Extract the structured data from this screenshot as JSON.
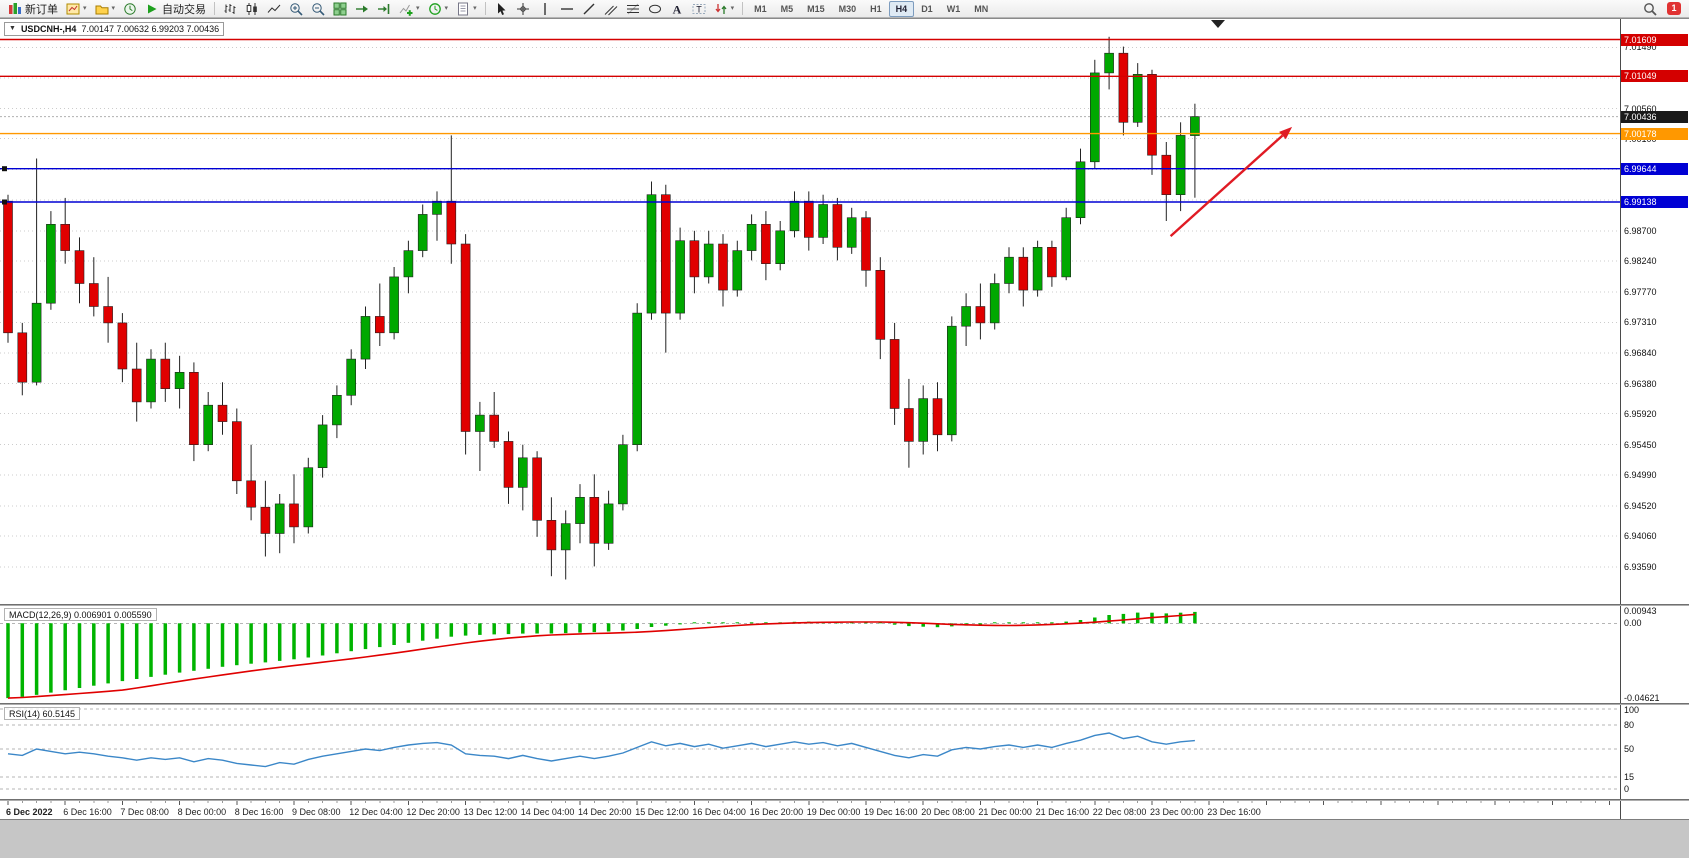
{
  "toolbar": {
    "groups": [
      {
        "name": "standard",
        "items": [
          {
            "name": "new-order-button",
            "icon": "new-order-icon",
            "label": "新订单"
          },
          {
            "name": "new-chart-button",
            "icon": "new-chart-icon",
            "caret": true
          },
          {
            "name": "profiles-button",
            "icon": "profiles-icon",
            "caret": true
          },
          {
            "name": "market-watch-button",
            "icon": "market-watch-icon"
          },
          {
            "name": "auto-trading-button",
            "icon": "play-icon",
            "label": "自动交易"
          }
        ]
      },
      {
        "name": "charts",
        "items": [
          {
            "name": "bar-chart-button",
            "icon": "bar-chart-icon"
          },
          {
            "name": "candlestick-button",
            "icon": "candlestick-icon"
          },
          {
            "name": "line-chart-button",
            "icon": "line-chart-icon"
          },
          {
            "name": "zoom-in-button",
            "icon": "zoom-in-icon"
          },
          {
            "name": "zoom-out-button",
            "icon": "zoom-out-icon"
          },
          {
            "name": "tile-windows-button",
            "icon": "tile-windows-icon"
          },
          {
            "name": "auto-scroll-button",
            "icon": "auto-scroll-icon"
          },
          {
            "name": "chart-shift-button",
            "icon": "chart-shift-icon"
          },
          {
            "name": "indicators-button",
            "icon": "indicators-icon",
            "caret": true
          },
          {
            "name": "periods-button",
            "icon": "periods-icon",
            "caret": true
          },
          {
            "name": "templates-button",
            "icon": "templates-icon",
            "caret": true
          }
        ]
      },
      {
        "name": "line-studies",
        "items": [
          {
            "name": "cursor-button",
            "icon": "cursor-icon"
          },
          {
            "name": "crosshair-button",
            "icon": "crosshair-icon"
          },
          {
            "name": "vertical-line-button",
            "icon": "vertical-line-icon"
          },
          {
            "name": "horizontal-line-button",
            "icon": "horizontal-line-icon"
          },
          {
            "name": "trendline-button",
            "icon": "trendline-icon"
          },
          {
            "name": "channel-button",
            "icon": "channel-icon"
          },
          {
            "name": "fibonacci-button",
            "icon": "fibonacci-icon"
          },
          {
            "name": "shapes-button",
            "icon": "ellipse-icon"
          },
          {
            "name": "text-button",
            "icon": "text-icon"
          },
          {
            "name": "text-label-button",
            "icon": "text-label-icon"
          },
          {
            "name": "arrows-button",
            "icon": "arrows-icon",
            "caret": true
          }
        ]
      }
    ],
    "timeframes": [
      "M1",
      "M5",
      "M15",
      "M30",
      "H1",
      "H4",
      "D1",
      "W1",
      "MN"
    ],
    "active_timeframe": "H4",
    "notification_count": "1"
  },
  "chart_header": {
    "collapse_icon": "▼",
    "symbol": "USDCNH-,H4",
    "ohlc": "7.00147 7.00632 6.99203 7.00436"
  },
  "chart_data": {
    "type": "candlestick",
    "symbol": "USDCNH-",
    "timeframe": "H4",
    "current_bar": {
      "open": 7.00147,
      "high": 7.00632,
      "low": 6.99203,
      "close": 7.00436
    },
    "y_axis": {
      "min": 6.9303,
      "max": 7.0192,
      "visible_labels": [
        "7.01490",
        "7.00560",
        "7.00100",
        "6.98700",
        "6.98240",
        "6.97770",
        "6.97310",
        "6.96840",
        "6.96380",
        "6.95920",
        "6.95450",
        "6.94990",
        "6.94520",
        "6.94060",
        "6.93590"
      ],
      "grid_levels": [
        7.0149,
        7.01025,
        7.0056,
        7.001,
        6.99635,
        6.9917,
        6.987,
        6.9824,
        6.9777,
        6.9731,
        6.9684,
        6.9638,
        6.9592,
        6.9545,
        6.9499,
        6.9452,
        6.9406,
        6.9359
      ]
    },
    "x_labels": [
      "6 Dec 2022",
      "6 Dec 16:00",
      "7 Dec 08:00",
      "8 Dec 00:00",
      "8 Dec 16:00",
      "9 Dec 08:00",
      "12 Dec 04:00",
      "12 Dec 20:00",
      "13 Dec 12:00",
      "14 Dec 04:00",
      "14 Dec 20:00",
      "15 Dec 12:00",
      "16 Dec 04:00",
      "16 Dec 20:00",
      "19 Dec 00:00",
      "19 Dec 16:00",
      "20 Dec 08:00",
      "21 Dec 00:00",
      "21 Dec 16:00",
      "22 Dec 08:00",
      "23 Dec 00:00",
      "23 Dec 16:00"
    ],
    "bars_per_label": 4,
    "candles": [
      [
        6.9915,
        6.9925,
        6.97,
        6.9715
      ],
      [
        6.9715,
        6.973,
        6.962,
        6.964
      ],
      [
        6.964,
        6.998,
        6.9635,
        6.976
      ],
      [
        6.976,
        6.99,
        6.975,
        6.988
      ],
      [
        6.988,
        6.992,
        6.982,
        6.984
      ],
      [
        6.984,
        6.986,
        6.976,
        6.979
      ],
      [
        6.979,
        6.983,
        6.974,
        6.9755
      ],
      [
        6.9755,
        6.98,
        6.97,
        6.973
      ],
      [
        6.973,
        6.9745,
        6.964,
        6.966
      ],
      [
        6.966,
        6.97,
        6.958,
        6.961
      ],
      [
        6.961,
        6.969,
        6.96,
        6.9675
      ],
      [
        6.9675,
        6.97,
        6.961,
        6.963
      ],
      [
        6.963,
        6.968,
        6.96,
        6.9655
      ],
      [
        6.9655,
        6.967,
        6.952,
        6.9545
      ],
      [
        6.9545,
        6.9625,
        6.9535,
        6.9605
      ],
      [
        6.9605,
        6.964,
        6.956,
        6.958
      ],
      [
        6.958,
        6.96,
        6.947,
        6.949
      ],
      [
        6.949,
        6.9545,
        6.943,
        6.945
      ],
      [
        6.945,
        6.949,
        6.9375,
        6.941
      ],
      [
        6.941,
        6.947,
        6.938,
        6.9455
      ],
      [
        6.9455,
        6.95,
        6.9395,
        6.942
      ],
      [
        6.942,
        6.9525,
        6.941,
        6.951
      ],
      [
        6.951,
        6.959,
        6.9495,
        6.9575
      ],
      [
        6.9575,
        6.9635,
        6.9555,
        6.962
      ],
      [
        6.962,
        6.969,
        6.9605,
        6.9675
      ],
      [
        6.9675,
        6.9755,
        6.966,
        6.974
      ],
      [
        6.974,
        6.979,
        6.9695,
        6.9715
      ],
      [
        6.9715,
        6.9815,
        6.9705,
        6.98
      ],
      [
        6.98,
        6.9855,
        6.9775,
        6.984
      ],
      [
        6.984,
        6.991,
        6.983,
        6.9895
      ],
      [
        6.9895,
        6.993,
        6.9855,
        6.9915
      ],
      [
        6.9915,
        7.0015,
        6.982,
        6.985
      ],
      [
        6.985,
        6.9865,
        6.953,
        6.9565
      ],
      [
        6.9565,
        6.961,
        6.9505,
        6.959
      ],
      [
        6.959,
        6.9625,
        6.954,
        6.955
      ],
      [
        6.955,
        6.9565,
        6.9455,
        6.948
      ],
      [
        6.948,
        6.9545,
        6.9445,
        6.9525
      ],
      [
        6.9525,
        6.9535,
        6.9405,
        6.943
      ],
      [
        6.943,
        6.9465,
        6.9345,
        6.9385
      ],
      [
        6.9385,
        6.9445,
        6.934,
        6.9425
      ],
      [
        6.9425,
        6.9485,
        6.9395,
        6.9465
      ],
      [
        6.9465,
        6.95,
        6.936,
        6.9395
      ],
      [
        6.9395,
        6.9475,
        6.9385,
        6.9455
      ],
      [
        6.9455,
        6.956,
        6.9445,
        6.9545
      ],
      [
        6.9545,
        6.976,
        6.9535,
        6.9745
      ],
      [
        6.9745,
        6.9945,
        6.9735,
        6.9925
      ],
      [
        6.9925,
        6.994,
        6.9685,
        6.9745
      ],
      [
        6.9745,
        6.9875,
        6.9735,
        6.9855
      ],
      [
        6.9855,
        6.987,
        6.9775,
        6.98
      ],
      [
        6.98,
        6.987,
        6.979,
        6.985
      ],
      [
        6.985,
        6.9865,
        6.9755,
        6.978
      ],
      [
        6.978,
        6.9855,
        6.977,
        6.984
      ],
      [
        6.984,
        6.9895,
        6.9825,
        6.988
      ],
      [
        6.988,
        6.99,
        6.9795,
        6.982
      ],
      [
        6.982,
        6.9885,
        6.981,
        6.987
      ],
      [
        6.987,
        6.993,
        6.986,
        6.9915
      ],
      [
        6.9915,
        6.993,
        6.984,
        6.986
      ],
      [
        6.986,
        6.9925,
        6.985,
        6.991
      ],
      [
        6.991,
        6.992,
        6.9825,
        6.9845
      ],
      [
        6.9845,
        6.9905,
        6.9835,
        6.989
      ],
      [
        6.989,
        6.99,
        6.9785,
        6.981
      ],
      [
        6.981,
        6.983,
        6.9675,
        6.9705
      ],
      [
        6.9705,
        6.973,
        6.9575,
        6.96
      ],
      [
        6.96,
        6.9645,
        6.951,
        6.955
      ],
      [
        6.955,
        6.9635,
        6.953,
        6.9615
      ],
      [
        6.9615,
        6.964,
        6.9535,
        6.956
      ],
      [
        6.956,
        6.974,
        6.955,
        6.9725
      ],
      [
        6.9725,
        6.9775,
        6.9695,
        6.9755
      ],
      [
        6.9755,
        6.979,
        6.9705,
        6.973
      ],
      [
        6.973,
        6.9805,
        6.972,
        6.979
      ],
      [
        6.979,
        6.9845,
        6.9775,
        6.983
      ],
      [
        6.983,
        6.9845,
        6.9755,
        6.978
      ],
      [
        6.978,
        6.9855,
        6.977,
        6.9845
      ],
      [
        6.9845,
        6.9855,
        6.9785,
        6.98
      ],
      [
        6.98,
        6.9905,
        6.9795,
        6.989
      ],
      [
        6.989,
        6.9995,
        6.988,
        6.9975
      ],
      [
        6.9975,
        7.013,
        6.9965,
        7.011
      ],
      [
        7.011,
        7.0165,
        7.0085,
        7.014
      ],
      [
        7.014,
        7.015,
        7.0015,
        7.0035
      ],
      [
        7.0035,
        7.0125,
        7.0028,
        7.0108
      ],
      [
        7.0108,
        7.0115,
        6.9955,
        6.9985
      ],
      [
        6.9985,
        7.0005,
        6.9885,
        6.9925
      ],
      [
        6.9925,
        7.0035,
        6.99,
        7.0015
      ],
      [
        7.00147,
        7.00632,
        6.99203,
        7.00436
      ]
    ],
    "price_lines": [
      {
        "name": "resistance-line-upper",
        "value": 7.01609,
        "color": "#d40000",
        "badge": "7.01609"
      },
      {
        "name": "resistance-line-lower",
        "value": 7.01049,
        "color": "#d40000",
        "badge": "7.01049"
      },
      {
        "name": "pivot-line-orange",
        "value": 7.00178,
        "color": "#ff9800",
        "badge": "7.00178"
      },
      {
        "name": "support-line-upper",
        "value": 6.99644,
        "color": "#0000d4",
        "badge": "6.99644",
        "handles": true
      },
      {
        "name": "support-line-lower",
        "value": 6.99138,
        "color": "#0000d4",
        "badge": "6.99138",
        "handles": true
      }
    ],
    "current_price": {
      "value": 7.00436,
      "badge": "7.00436",
      "badge_color": "#1a1a1a"
    },
    "trend_arrow": {
      "x1_bar": 81.3,
      "y1_price": 6.9862,
      "x2_bar": 89.8,
      "y2_price": 7.0028,
      "color": "#e01b24"
    },
    "colors": {
      "bull": "#00a800",
      "bear": "#e00000",
      "wick": "#222222",
      "grid": "#cccccc"
    },
    "indicators": {
      "macd": {
        "label": "MACD(12,26,9) 0.006901 0.005590",
        "main_value": 0.006901,
        "signal_value": 0.00559,
        "signal_period": 9,
        "axis_labels": [
          "0.00943",
          "0.00",
          "-0.04621"
        ],
        "axis_values": [
          0.00943,
          0,
          -0.04621
        ],
        "ylim": [
          -0.0485,
          0.0105
        ],
        "histogram_color": "#00b400",
        "signal_color": "#e00000",
        "values": [
          -0.0455,
          -0.0448,
          -0.0436,
          -0.0422,
          -0.0408,
          -0.0394,
          -0.038,
          -0.0366,
          -0.0352,
          -0.0339,
          -0.0326,
          -0.0313,
          -0.03,
          -0.0289,
          -0.0277,
          -0.0265,
          -0.0255,
          -0.0246,
          -0.0238,
          -0.0229,
          -0.0219,
          -0.0208,
          -0.0196,
          -0.0183,
          -0.017,
          -0.0157,
          -0.0145,
          -0.0132,
          -0.0119,
          -0.0106,
          -0.0094,
          -0.0082,
          -0.0075,
          -0.0071,
          -0.0068,
          -0.0066,
          -0.0063,
          -0.0062,
          -0.0062,
          -0.006,
          -0.0057,
          -0.0054,
          -0.005,
          -0.0044,
          -0.0035,
          -0.0023,
          -0.0015,
          -0.0007,
          -0.0003,
          0.0001,
          0.0002,
          0.0003,
          0.0004,
          0.0004,
          0.0006,
          0.0009,
          0.001,
          0.0011,
          0.001,
          0.001,
          0.0007,
          0.0001,
          -0.0009,
          -0.0017,
          -0.0021,
          -0.0024,
          -0.0019,
          -0.0014,
          -0.001,
          -0.0005,
          -0.0001,
          0.0001,
          0.0004,
          0.0005,
          0.001,
          0.002,
          0.0035,
          0.005,
          0.0057,
          0.0065,
          0.0064,
          0.006,
          0.0064,
          0.0069
        ]
      },
      "rsi": {
        "label": "RSI(14) 60.5145",
        "current_value": 60.5145,
        "period": 14,
        "levels": [
          "100",
          "80",
          "50",
          "15",
          "0"
        ],
        "level_values": [
          100,
          80,
          50,
          15,
          0
        ],
        "line_color": "#3b87c8",
        "values": [
          44,
          42,
          50,
          47,
          44,
          46,
          44,
          41,
          39,
          36,
          39,
          37,
          39,
          34,
          38,
          36,
          32,
          30,
          28,
          33,
          31,
          37,
          41,
          44,
          47,
          50,
          48,
          52,
          55,
          57,
          58,
          55,
          44,
          42,
          41,
          38,
          42,
          38,
          35,
          38,
          41,
          38,
          41,
          45,
          52,
          59,
          54,
          57,
          53,
          56,
          51,
          54,
          57,
          53,
          56,
          59,
          56,
          58,
          54,
          57,
          52,
          47,
          42,
          39,
          43,
          41,
          49,
          52,
          50,
          53,
          55,
          52,
          55,
          52,
          57,
          61,
          67,
          70,
          63,
          66,
          59,
          56,
          59,
          60.5145
        ]
      }
    }
  }
}
